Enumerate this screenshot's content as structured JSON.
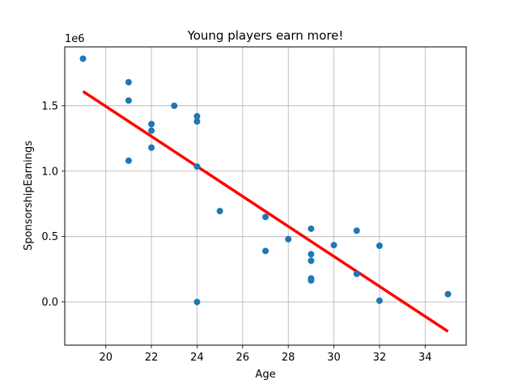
{
  "chart_data": {
    "type": "scatter",
    "title": "Young players earn more!",
    "xlabel": "Age",
    "ylabel": "SponsorshipEarnings",
    "y_offset_label": "1e6",
    "xlim": [
      18.2,
      35.8
    ],
    "ylim": [
      -330000,
      1950000
    ],
    "x_ticks": [
      20,
      22,
      24,
      26,
      28,
      30,
      32,
      34
    ],
    "x_tick_labels": [
      "20",
      "22",
      "24",
      "26",
      "28",
      "30",
      "32",
      "34"
    ],
    "y_ticks": [
      0,
      500000,
      1000000,
      1500000
    ],
    "y_tick_labels": [
      "0.0",
      "0.5",
      "1.0",
      "1.5"
    ],
    "grid": true,
    "point_color": "#1f77b4",
    "line_color": "#ff0000",
    "points": [
      {
        "x": 19,
        "y": 1860000
      },
      {
        "x": 21,
        "y": 1680000
      },
      {
        "x": 21,
        "y": 1540000
      },
      {
        "x": 21,
        "y": 1080000
      },
      {
        "x": 22,
        "y": 1360000
      },
      {
        "x": 22,
        "y": 1310000
      },
      {
        "x": 22,
        "y": 1180000
      },
      {
        "x": 23,
        "y": 1500000
      },
      {
        "x": 24,
        "y": 1420000
      },
      {
        "x": 24,
        "y": 1380000
      },
      {
        "x": 24,
        "y": 1035000
      },
      {
        "x": 24,
        "y": 0
      },
      {
        "x": 25,
        "y": 695000
      },
      {
        "x": 27,
        "y": 650000
      },
      {
        "x": 27,
        "y": 390000
      },
      {
        "x": 28,
        "y": 480000
      },
      {
        "x": 29,
        "y": 560000
      },
      {
        "x": 29,
        "y": 365000
      },
      {
        "x": 29,
        "y": 315000
      },
      {
        "x": 29,
        "y": 180000
      },
      {
        "x": 29,
        "y": 165000
      },
      {
        "x": 30,
        "y": 435000
      },
      {
        "x": 31,
        "y": 545000
      },
      {
        "x": 31,
        "y": 215000
      },
      {
        "x": 32,
        "y": 430000
      },
      {
        "x": 32,
        "y": 10000
      },
      {
        "x": 35,
        "y": 60000
      }
    ],
    "trend_line": {
      "x": [
        19,
        35
      ],
      "y": [
        1610000,
        -225000
      ]
    }
  }
}
